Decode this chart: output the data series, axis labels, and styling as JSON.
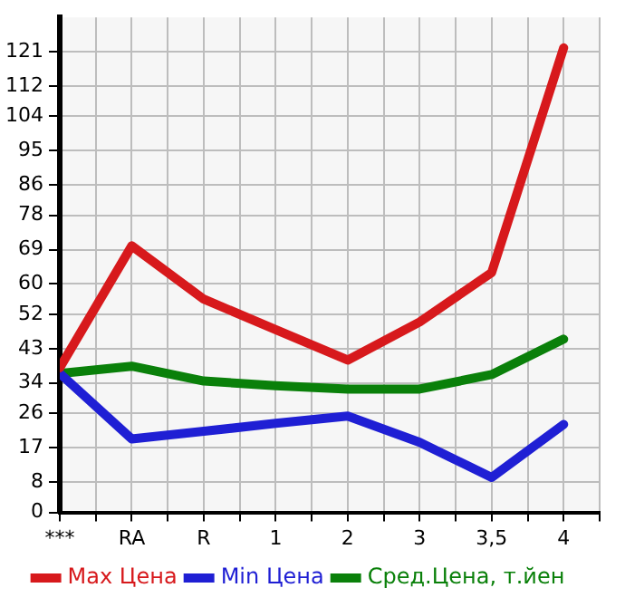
{
  "chart_data": {
    "type": "line",
    "categories": [
      "***",
      "RA",
      "R",
      "1",
      "2",
      "3",
      "3,5",
      "4"
    ],
    "series": [
      {
        "name": "Max Цена",
        "color": "#d7191c",
        "values": [
          38,
          70,
          56,
          48,
          40,
          50,
          63,
          122
        ]
      },
      {
        "name": "Min Цена",
        "color": "#1f1fd4",
        "values": [
          36.5,
          19.3,
          21.3,
          23.4,
          25.3,
          18.4,
          9.2,
          23.1
        ]
      },
      {
        "name": "Сред.Цена, т.йен",
        "color": "#0a800a",
        "values": [
          36.5,
          38.4,
          34.5,
          33.3,
          32.4,
          32.4,
          36.2,
          45.5
        ]
      }
    ],
    "ylim": [
      0,
      130
    ],
    "yticks": [
      0,
      8,
      17,
      26,
      34,
      43,
      52,
      60,
      69,
      78,
      86,
      95,
      104,
      112,
      121
    ],
    "grid": true,
    "legend": "bottom",
    "marker": "none",
    "line_style": "solid"
  }
}
